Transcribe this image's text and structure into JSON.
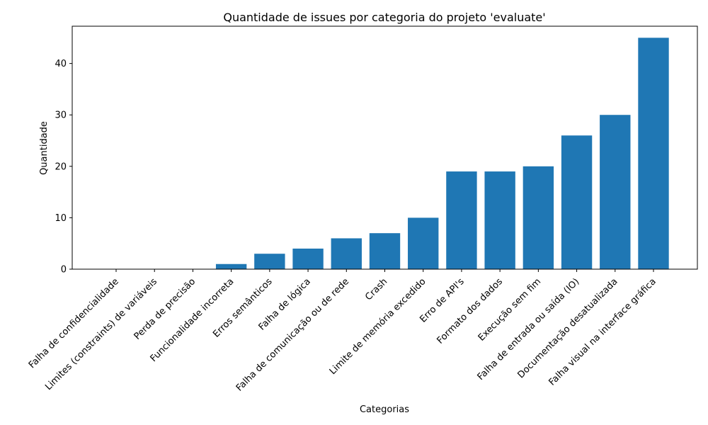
{
  "chart_data": {
    "type": "bar",
    "title": "Quantidade de issues por categoria do projeto 'evaluate'",
    "xlabel": "Categorias",
    "ylabel": "Quantidade",
    "categories": [
      "Falha de confidencialidade",
      "Limites (constraints) de variáveis",
      "Perda de precisão",
      "Funcionalidade incorreta",
      "Erros semânticos",
      "Falha de lógica",
      "Falha de comunicação ou de rede",
      "Crash",
      "Limite de memória excedido",
      "Erro de API's",
      "Formato dos dados",
      "Execução sem fim",
      "Falha de entrada ou saída (IO)",
      "Documentação desatualizada",
      "Falha visual na interface gráfica"
    ],
    "values": [
      0,
      0,
      0,
      1,
      3,
      4,
      6,
      7,
      10,
      19,
      19,
      20,
      26,
      30,
      45
    ],
    "yticks": [
      0,
      10,
      20,
      30,
      40
    ],
    "ylim": [
      0,
      47.25
    ],
    "grid": false,
    "bar_color": "#1f77b4"
  }
}
